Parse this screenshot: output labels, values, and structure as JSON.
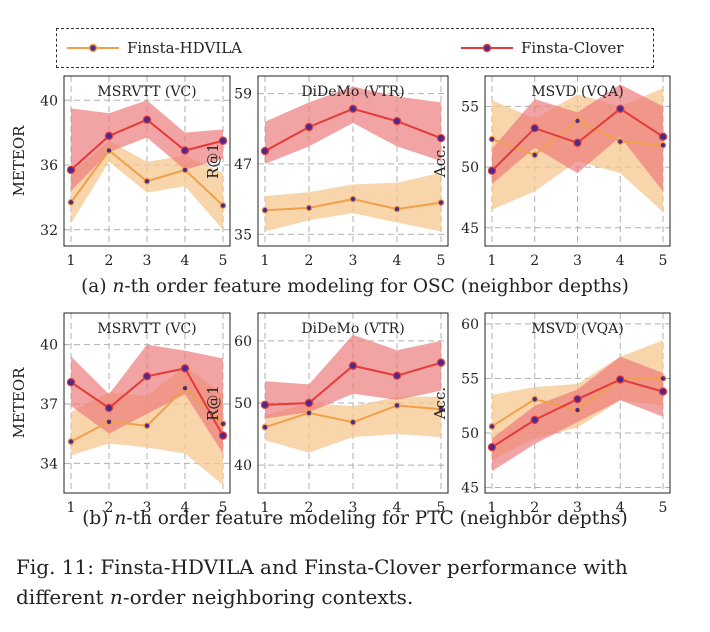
{
  "legend": {
    "items": [
      {
        "name": "Finsta-HDVILA",
        "color": "#f0a04a"
      },
      {
        "name": "Finsta-Clover",
        "color": "#e53a3a"
      }
    ]
  },
  "captions": {
    "a": {
      "prefix": "(a) ",
      "italic": "n",
      "text": "-th order feature modeling for OSC (neighbor depths)"
    },
    "b": {
      "prefix": "(b) ",
      "italic": "n",
      "text": "-th order feature modeling for PTC (neighbor depths)"
    }
  },
  "figure_caption": {
    "line1": "Fig. 11: Finsta-HDVILA and Finsta-Clover performance with",
    "line2_pre": "different ",
    "line2_italic": "n",
    "line2_post": "-order neighboring contexts."
  },
  "colors": {
    "hdvila": "#f0a04a",
    "hdvila_band": "#f5c78e",
    "clover": "#e53a3a",
    "clover_band": "#ec7c7c",
    "marker": "#4b2a8f"
  },
  "chart_data": [
    {
      "type": "line",
      "title": "MSRVTT (VC)",
      "ylabel": "METEOR",
      "x": [
        1,
        2,
        3,
        4,
        5
      ],
      "xlim": [
        1,
        5
      ],
      "ylim": [
        31,
        41.5
      ],
      "yticks": [
        32,
        36,
        40
      ],
      "series": [
        {
          "name": "Finsta-HDVILA",
          "values": [
            33.7,
            36.9,
            35.0,
            35.7,
            33.5
          ],
          "band_upper": [
            35.5,
            37.5,
            36.2,
            36.6,
            35.5
          ],
          "band_lower": [
            32.4,
            36.2,
            34.3,
            34.7,
            32.0
          ]
        },
        {
          "name": "Finsta-Clover",
          "values": [
            35.7,
            37.8,
            38.8,
            36.9,
            37.5
          ],
          "band_upper": [
            39.5,
            39.2,
            40.0,
            38.0,
            38.2
          ],
          "band_lower": [
            34.4,
            36.8,
            37.7,
            35.7,
            36.4
          ]
        }
      ]
    },
    {
      "type": "line",
      "title": "DiDeMo (VTR)",
      "ylabel": "R@1",
      "x": [
        1,
        2,
        3,
        4,
        5
      ],
      "xlim": [
        1,
        5
      ],
      "ylim": [
        33,
        62
      ],
      "yticks": [
        35,
        47,
        59
      ],
      "series": [
        {
          "name": "Finsta-HDVILA",
          "values": [
            39.1,
            39.5,
            41.0,
            39.3,
            40.4
          ],
          "band_upper": [
            41.5,
            42.2,
            43.5,
            43.8,
            45.5
          ],
          "band_lower": [
            35.5,
            37.4,
            38.6,
            37.0,
            35.5
          ]
        },
        {
          "name": "Finsta-Clover",
          "values": [
            49.2,
            53.3,
            56.4,
            54.3,
            51.4
          ],
          "band_upper": [
            54.2,
            57.5,
            60.2,
            58.5,
            57.5
          ],
          "band_lower": [
            47.0,
            50.0,
            54.0,
            50.0,
            47.5
          ]
        }
      ]
    },
    {
      "type": "line",
      "title": "MSVD  (VQA)",
      "ylabel": "Acc.",
      "x": [
        1,
        2,
        3,
        4,
        5
      ],
      "xlim": [
        1,
        5
      ],
      "ylim": [
        43.5,
        57.5
      ],
      "yticks": [
        45,
        50,
        55
      ],
      "series": [
        {
          "name": "Finsta-HDVILA",
          "values": [
            52.3,
            51.0,
            53.8,
            52.1,
            51.8
          ],
          "band_upper": [
            55.5,
            54.0,
            56.0,
            55.0,
            56.5
          ],
          "band_lower": [
            46.5,
            48.0,
            50.5,
            49.5,
            46.3
          ]
        },
        {
          "name": "Finsta-Clover",
          "values": [
            49.7,
            53.2,
            52.0,
            54.8,
            52.5
          ],
          "band_upper": [
            51.5,
            55.6,
            54.5,
            56.8,
            55.0
          ],
          "band_lower": [
            48.6,
            51.6,
            49.5,
            52.5,
            48.0
          ]
        }
      ]
    },
    {
      "type": "line",
      "title": "MSRVTT (VC)",
      "ylabel": "METEOR",
      "x": [
        1,
        2,
        3,
        4,
        5
      ],
      "xlim": [
        1,
        5
      ],
      "ylim": [
        32.5,
        41.6
      ],
      "yticks": [
        34,
        37,
        40
      ],
      "series": [
        {
          "name": "Finsta-HDVILA",
          "values": [
            35.1,
            36.1,
            35.9,
            37.8,
            36.0
          ],
          "band_upper": [
            36.6,
            37.6,
            37.4,
            38.9,
            37.5
          ],
          "band_lower": [
            34.4,
            35.0,
            34.8,
            34.5,
            32.9
          ]
        },
        {
          "name": "Finsta-Clover",
          "values": [
            38.1,
            36.8,
            38.4,
            38.8,
            35.4
          ],
          "band_upper": [
            39.4,
            37.5,
            40.0,
            39.7,
            39.3
          ],
          "band_lower": [
            36.9,
            35.5,
            36.5,
            37.5,
            34.5
          ]
        }
      ]
    },
    {
      "type": "line",
      "title": "DiDeMo (VTR)",
      "ylabel": "R@1",
      "x": [
        1,
        2,
        3,
        4,
        5
      ],
      "xlim": [
        1,
        5
      ],
      "ylim": [
        35.5,
        64.5
      ],
      "yticks": [
        40,
        50,
        60
      ],
      "series": [
        {
          "name": "Finsta-HDVILA",
          "values": [
            46.1,
            48.4,
            46.9,
            49.6,
            49.0
          ],
          "band_upper": [
            48.0,
            50.0,
            49.5,
            51.0,
            51.0
          ],
          "band_lower": [
            44.0,
            42.0,
            44.5,
            45.0,
            44.5
          ]
        },
        {
          "name": "Finsta-Clover",
          "values": [
            49.7,
            50.0,
            56.0,
            54.4,
            56.5
          ],
          "band_upper": [
            53.5,
            53.0,
            61.0,
            58.5,
            60.0
          ],
          "band_lower": [
            47.5,
            48.5,
            51.5,
            50.5,
            52.0
          ]
        }
      ]
    },
    {
      "type": "line",
      "title": "MSVD  (VQA)",
      "ylabel": "Acc.",
      "x": [
        1,
        2,
        3,
        4,
        5
      ],
      "xlim": [
        1,
        5
      ],
      "ylim": [
        44.5,
        61
      ],
      "yticks": [
        45,
        50,
        55,
        60
      ],
      "series": [
        {
          "name": "Finsta-HDVILA",
          "values": [
            50.6,
            53.1,
            52.1,
            55.0,
            55.0
          ],
          "band_upper": [
            53.5,
            54.2,
            54.5,
            57.0,
            58.5
          ],
          "band_lower": [
            47.5,
            49.5,
            50.5,
            53.0,
            52.5
          ]
        },
        {
          "name": "Finsta-Clover",
          "values": [
            48.7,
            51.2,
            53.1,
            54.9,
            53.8
          ],
          "band_upper": [
            49.5,
            52.5,
            54.0,
            57.0,
            55.5
          ],
          "band_lower": [
            46.5,
            49.0,
            51.0,
            53.0,
            51.5
          ]
        }
      ]
    }
  ]
}
